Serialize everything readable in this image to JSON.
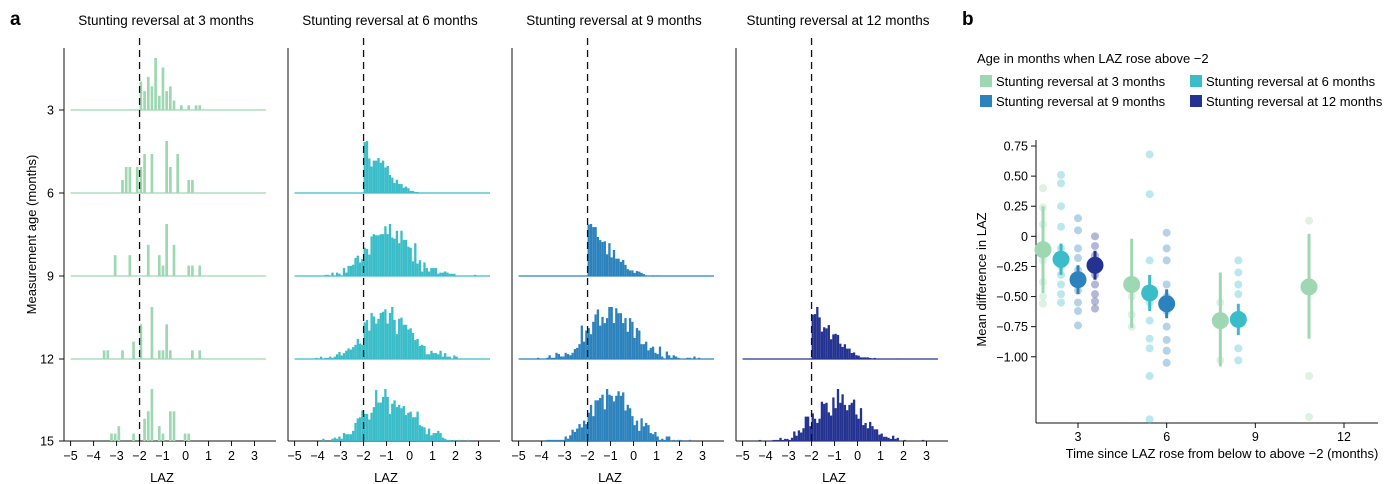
{
  "panel_labels": {
    "a": "a",
    "b": "b"
  },
  "colors": {
    "m3": "#9ed8b2",
    "m6": "#3bbdc9",
    "m9": "#2c82bd",
    "m12": "#243391",
    "axis": "#111111"
  },
  "chart_data": [
    {
      "type": "bar",
      "panel": "a",
      "kind": "ridgeline-histogram",
      "columns": [
        {
          "title": "Stunting reversal at 3 months",
          "color_key": "m3",
          "min_age": 3,
          "onset_age": 3
        },
        {
          "title": "Stunting reversal at 6 months",
          "color_key": "m6",
          "min_age": 6,
          "onset_age": 6
        },
        {
          "title": "Stunting reversal at 9 months",
          "color_key": "m9",
          "min_age": 9,
          "onset_age": 9
        },
        {
          "title": "Stunting reversal at 12 months",
          "color_key": "m12",
          "min_age": 12,
          "onset_age": 12
        }
      ],
      "ylabel": "Measurement age (months)",
      "yticks": [
        3,
        6,
        9,
        12,
        15
      ],
      "xlabel": "LAZ",
      "xticks": [
        -5,
        -4,
        -3,
        -2,
        -1,
        0,
        1,
        2,
        3
      ],
      "xlim": [
        -5.2,
        3.5
      ],
      "reference_line_x": -2
    },
    {
      "type": "scatter",
      "panel": "b",
      "legend_title": "Age in months when LAZ rose above −2",
      "legend_position": "top",
      "xlabel": "Time since LAZ rose from below to above −2 (months)",
      "ylabel": "Mean difference in LAZ",
      "xticks": [
        3,
        6,
        9,
        12
      ],
      "yticks": [
        0.75,
        0.5,
        0.25,
        0,
        -0.25,
        -0.5,
        -0.75,
        -1.0
      ],
      "ytick_labels": [
        "0.75",
        "0.50",
        "0.25",
        "0",
        "−0.25",
        "−0.50",
        "−0.75",
        "−1.00"
      ],
      "ylim": [
        -1.55,
        0.8
      ],
      "series": [
        {
          "name": "Stunting reversal at 3 months",
          "color_key": "m3",
          "points": [
            {
              "x": 3,
              "mean": -0.11,
              "lo": -0.47,
              "hi": 0.25,
              "obs": [
                0.4,
                0.24,
                0.1,
                -0.2,
                -0.38,
                -0.5,
                -0.56
              ]
            },
            {
              "x": 6,
              "mean": -0.4,
              "lo": -0.76,
              "hi": -0.02,
              "obs": [
                -0.5,
                -0.65,
                -0.75
              ]
            },
            {
              "x": 9,
              "mean": -0.7,
              "lo": -1.08,
              "hi": -0.3,
              "obs": [
                -0.55,
                -1.03
              ]
            },
            {
              "x": 12,
              "mean": -0.42,
              "lo": -0.85,
              "hi": 0.02,
              "obs": [
                0.13,
                -1.16,
                -1.5
              ]
            }
          ]
        },
        {
          "name": "Stunting reversal at 6 months",
          "color_key": "m6",
          "points": [
            {
              "x": 3,
              "mean": -0.19,
              "lo": -0.32,
              "hi": -0.06,
              "obs": [
                0.51,
                0.44,
                0.25,
                0.08,
                -0.1,
                -0.25,
                -0.32,
                -0.4,
                -0.48,
                -0.55
              ]
            },
            {
              "x": 6,
              "mean": -0.47,
              "lo": -0.62,
              "hi": -0.32,
              "obs": [
                0.68,
                0.35,
                -0.2,
                -0.55,
                -0.7,
                -0.85,
                -0.93,
                -1.16,
                -1.52
              ]
            },
            {
              "x": 9,
              "mean": -0.69,
              "lo": -0.82,
              "hi": -0.56,
              "obs": [
                -0.2,
                -0.3,
                -0.4,
                -0.48,
                -0.93,
                -1.03
              ]
            }
          ]
        },
        {
          "name": "Stunting reversal at 9 months",
          "color_key": "m9",
          "points": [
            {
              "x": 3,
              "mean": -0.36,
              "lo": -0.48,
              "hi": -0.24,
              "obs": [
                0.15,
                0.05,
                -0.1,
                -0.18,
                -0.28,
                -0.45,
                -0.55,
                -0.62,
                -0.74
              ]
            },
            {
              "x": 6,
              "mean": -0.56,
              "lo": -0.68,
              "hi": -0.44,
              "obs": [
                0.03,
                -0.1,
                -0.2,
                -0.4,
                -0.5,
                -0.62,
                -0.75,
                -0.86,
                -0.95,
                -1.05
              ]
            }
          ]
        },
        {
          "name": "Stunting reversal at 12 months",
          "color_key": "m12",
          "points": [
            {
              "x": 3,
              "mean": -0.24,
              "lo": -0.36,
              "hi": -0.12,
              "obs": [
                0.0,
                -0.08,
                -0.16,
                -0.24,
                -0.32,
                -0.4,
                -0.48,
                -0.54,
                -0.6
              ]
            }
          ]
        }
      ]
    }
  ]
}
